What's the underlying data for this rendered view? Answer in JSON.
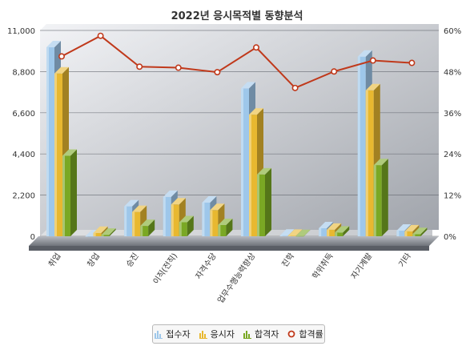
{
  "chart_data": {
    "type": "bar",
    "title": "2022년 응시목적별 동향분석",
    "categories": [
      "취업",
      "창업",
      "승진",
      "이직(전직)",
      "자격수당",
      "업무수행능력향상",
      "진학",
      "학위취득",
      "자기계발",
      "기타"
    ],
    "series": [
      {
        "name": "접수자",
        "axis": "left",
        "color": "#9ec7ea",
        "values": [
          10100,
          0,
          1600,
          2100,
          1800,
          7900,
          30,
          430,
          9600,
          300
        ]
      },
      {
        "name": "응시자",
        "axis": "left",
        "color": "#e8b830",
        "values": [
          8700,
          180,
          1300,
          1700,
          1400,
          6500,
          25,
          350,
          7800,
          260
        ]
      },
      {
        "name": "합격자",
        "axis": "left",
        "color": "#7aa824",
        "values": [
          4300,
          80,
          550,
          750,
          600,
          3300,
          10,
          200,
          3800,
          120
        ]
      },
      {
        "name": "합격률",
        "axis": "right",
        "type": "line",
        "color": "#c0391b",
        "values": [
          51.5,
          57.5,
          48.5,
          48.2,
          46.9,
          54.1,
          42.3,
          47.1,
          50.3,
          49.6
        ]
      }
    ],
    "y_left": {
      "ticks": [
        "0",
        "2,200",
        "4,400",
        "6,600",
        "8,800",
        "11,000"
      ],
      "min": 0,
      "max": 11000
    },
    "y_right": {
      "ticks": [
        "0%",
        "12%",
        "24%",
        "36%",
        "48%",
        "60%"
      ],
      "min": 0,
      "max": 60
    },
    "grid": true,
    "legend_position": "bottom-center"
  },
  "colors": {
    "plot_bg_top": "#f2f3f6",
    "plot_bg_bottom": "#9fa3aa",
    "line_marker_fill": "#ffffff"
  }
}
